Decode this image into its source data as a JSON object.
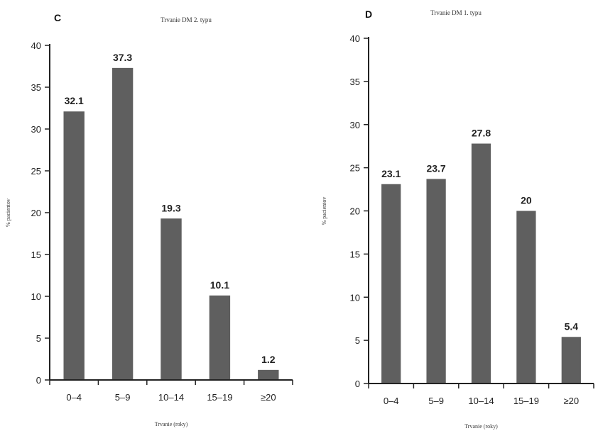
{
  "chart_data": [
    {
      "type": "bar",
      "panel": "C",
      "title": "Trvanie DM 2. typu",
      "xlabel": "Trvanie (roky)",
      "ylabel": "% pacientov",
      "categories": [
        "0–4",
        "5–9",
        "10–14",
        "15–19",
        "≥20"
      ],
      "values": [
        32.1,
        37.3,
        19.3,
        10.1,
        1.2
      ],
      "value_labels": [
        "32.1",
        "37.3",
        "19.3",
        "10.1",
        "1.2"
      ],
      "yticks": [
        "0",
        "5",
        "10",
        "15",
        "20",
        "25",
        "30",
        "35",
        "40"
      ],
      "ylim": [
        0,
        40
      ],
      "grid": false,
      "bar_color": "#5f5f5f"
    },
    {
      "type": "bar",
      "panel": "D",
      "title": "Trvanie DM 1. typu",
      "xlabel": "Trvanie (roky)",
      "ylabel": "% pacientov",
      "categories": [
        "0–4",
        "5–9",
        "10–14",
        "15–19",
        "≥20"
      ],
      "values": [
        23.1,
        23.7,
        27.8,
        20,
        5.4
      ],
      "value_labels": [
        "23.1",
        "23.7",
        "27.8",
        "20",
        "5.4"
      ],
      "yticks": [
        "0",
        "5",
        "10",
        "15",
        "20",
        "25",
        "30",
        "35",
        "40"
      ],
      "ylim": [
        0,
        40
      ],
      "grid": false,
      "bar_color": "#5f5f5f"
    }
  ]
}
